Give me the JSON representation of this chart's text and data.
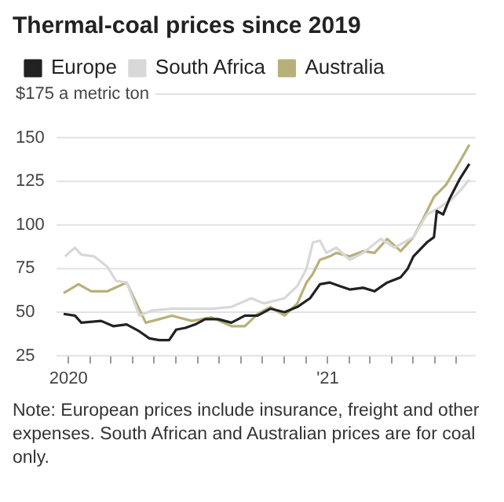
{
  "chart_data": {
    "type": "line",
    "title": "Thermal-coal prices since 2019",
    "series": [
      {
        "name": "Europe",
        "color": "#222222",
        "x": [
          "2019-12-25",
          "2020-01-10",
          "2020-01-19",
          "2020-02-16",
          "2020-03-04",
          "2020-03-23",
          "2020-04-10",
          "2020-04-24",
          "2020-05-08",
          "2020-05-22",
          "2020-06-01",
          "2020-06-14",
          "2020-06-28",
          "2020-07-12",
          "2020-07-30",
          "2020-08-18",
          "2020-09-06",
          "2020-09-24",
          "2020-10-12",
          "2020-11-01",
          "2020-11-19",
          "2020-12-07",
          "2020-12-21",
          "2021-01-04",
          "2021-01-18",
          "2021-02-01",
          "2021-02-20",
          "2021-03-08",
          "2021-03-26",
          "2021-04-14",
          "2021-04-24",
          "2021-05-02",
          "2021-05-21",
          "2021-05-31",
          "2021-06-04",
          "2021-06-13",
          "2021-06-22",
          "2021-07-06",
          "2021-07-20"
        ],
        "values": [
          49,
          48,
          44,
          45,
          42,
          43,
          39,
          35,
          34,
          34,
          40,
          41,
          43,
          46,
          46,
          44,
          48,
          48,
          52,
          50,
          53,
          58,
          66,
          67,
          65,
          63,
          64,
          62,
          67,
          70,
          75,
          82,
          90,
          93,
          108,
          106,
          115,
          126,
          135
        ]
      },
      {
        "name": "South Africa",
        "color": "#d8d8d8",
        "x": [
          "2019-12-27",
          "2020-01-10",
          "2020-01-19",
          "2020-02-06",
          "2020-02-25",
          "2020-03-08",
          "2020-03-23",
          "2020-04-10",
          "2020-04-28",
          "2020-05-26",
          "2020-06-23",
          "2020-07-21",
          "2020-08-18",
          "2020-09-15",
          "2020-10-03",
          "2020-11-01",
          "2020-11-19",
          "2020-12-02",
          "2020-12-11",
          "2020-12-21",
          "2020-12-30",
          "2021-01-13",
          "2021-02-01",
          "2021-02-20",
          "2021-03-17",
          "2021-04-05",
          "2021-05-02",
          "2021-05-21",
          "2021-06-08",
          "2021-06-26",
          "2021-07-10",
          "2021-07-20"
        ],
        "values": [
          82,
          87,
          83,
          82,
          76,
          68,
          67,
          48,
          51,
          52,
          52,
          52,
          53,
          58,
          55,
          58,
          65,
          75,
          90,
          91,
          84,
          87,
          80,
          84,
          92,
          87,
          93,
          106,
          110,
          115,
          121,
          126
        ]
      },
      {
        "name": "Australia",
        "color": "#b8b07a",
        "x": [
          "2019-12-25",
          "2020-01-15",
          "2020-02-02",
          "2020-02-25",
          "2020-03-23",
          "2020-04-06",
          "2020-04-19",
          "2020-05-08",
          "2020-05-26",
          "2020-06-23",
          "2020-07-21",
          "2020-08-18",
          "2020-09-06",
          "2020-09-24",
          "2020-10-12",
          "2020-11-01",
          "2020-11-19",
          "2020-12-02",
          "2020-12-11",
          "2020-12-21",
          "2021-01-04",
          "2021-01-13",
          "2021-02-01",
          "2021-02-20",
          "2021-03-08",
          "2021-03-26",
          "2021-04-14",
          "2021-05-02",
          "2021-05-15",
          "2021-05-31",
          "2021-06-17",
          "2021-07-06",
          "2021-07-20"
        ],
        "values": [
          61,
          66,
          62,
          62,
          67,
          55,
          44,
          46,
          48,
          45,
          47,
          42,
          42,
          49,
          53,
          48,
          55,
          67,
          72,
          80,
          82,
          84,
          82,
          85,
          84,
          92,
          85,
          93,
          103,
          116,
          123,
          136,
          146
        ]
      }
    ],
    "xlim": [
      "2019-12-15",
      "2021-07-29"
    ],
    "xticks": [
      {
        "value": "2020-01",
        "label": "2020"
      },
      {
        "value": "2020-02",
        "label": null
      },
      {
        "value": "2020-03",
        "label": null
      },
      {
        "value": "2020-04",
        "label": null
      },
      {
        "value": "2020-05",
        "label": null
      },
      {
        "value": "2020-06",
        "label": null
      },
      {
        "value": "2020-07",
        "label": null
      },
      {
        "value": "2020-08",
        "label": null
      },
      {
        "value": "2020-09",
        "label": null
      },
      {
        "value": "2020-10",
        "label": null
      },
      {
        "value": "2020-11",
        "label": null
      },
      {
        "value": "2020-12",
        "label": null
      },
      {
        "value": "2021-01",
        "label": "'21"
      },
      {
        "value": "2021-02",
        "label": null
      },
      {
        "value": "2021-03",
        "label": null
      },
      {
        "value": "2021-04",
        "label": null
      },
      {
        "value": "2021-05",
        "label": null
      },
      {
        "value": "2021-06",
        "label": null
      },
      {
        "value": "2021-07",
        "label": null
      }
    ],
    "ylim": [
      25,
      175
    ],
    "yticks": [
      25,
      50,
      75,
      100,
      125,
      150,
      {
        "value": 175,
        "label": "$175 a metric ton"
      }
    ],
    "grid": "y",
    "legend": "top left",
    "marker": "none",
    "line_style": "solid",
    "annotations": [
      "Note: European prices include insurance, freight and other expenses. South African and Australian prices are for coal only."
    ]
  }
}
